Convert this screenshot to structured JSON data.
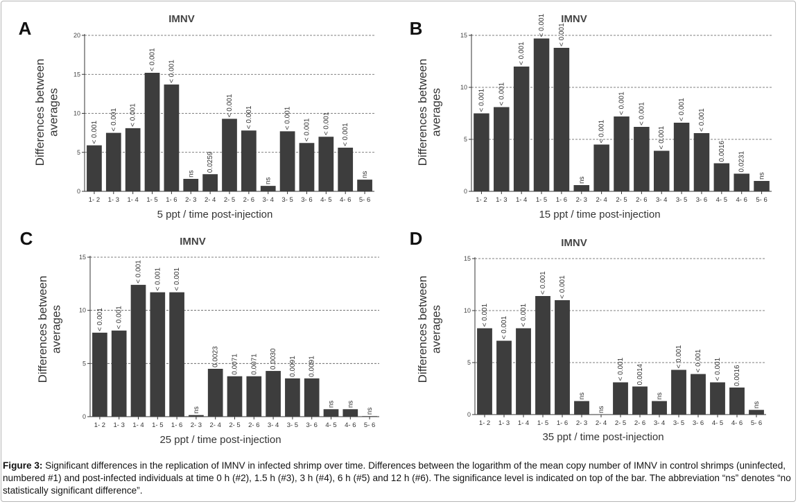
{
  "caption": {
    "label": "Figure 3:",
    "text": " Significant differences in the replication of IMNV in infected shrimp over time. Differences between the logarithm of the mean copy number of IMNV in control shrimps (uninfected, numbered #1) and post-infected individuals at time 0 h (#2), 1.5 h (#3), 3 h (#4), 6 h (#5) and 12 h (#6). The significance level is indicated on top of the bar. The abbreviation “ns” denotes “no statistically significant difference”."
  },
  "chart_data": [
    {
      "panel": "A",
      "type": "bar",
      "title": "IMNV",
      "xlabel": "5 ppt / time post-injection",
      "ylabel": "Differences between averages",
      "ylim": [
        0,
        20
      ],
      "yticks": [
        0,
        5,
        10,
        15,
        20
      ],
      "grid": true,
      "categories": [
        "1- 2",
        "1- 3",
        "1- 4",
        "1- 5",
        "1- 6",
        "2- 3",
        "2- 4",
        "2- 5",
        "2- 6",
        "3- 4",
        "3- 5",
        "3- 6",
        "4- 5",
        "4- 6",
        "5- 6"
      ],
      "values": [
        5.9,
        7.5,
        8.1,
        15.2,
        13.7,
        1.6,
        2.2,
        9.3,
        7.8,
        0.7,
        7.7,
        6.2,
        7.0,
        5.6,
        1.5
      ],
      "labels": [
        "< 0.001",
        "< 0.001",
        "< 0.001",
        "< 0.001",
        "< 0.001",
        "ns",
        "0.0259",
        "< 0.001",
        "< 0.001",
        "ns",
        "< 0.001",
        "< 0.001",
        "< 0.001",
        "< 0.001",
        "ns"
      ]
    },
    {
      "panel": "B",
      "type": "bar",
      "title": "IMNV",
      "xlabel": "15 ppt / time post-injection",
      "ylabel": "Differences between averages",
      "ylim": [
        0,
        15
      ],
      "yticks": [
        0,
        5,
        10,
        15
      ],
      "grid": true,
      "categories": [
        "1- 2",
        "1- 3",
        "1- 4",
        "1- 5",
        "1- 6",
        "2- 3",
        "2- 4",
        "2- 5",
        "2- 6",
        "3- 4",
        "3- 5",
        "3- 6",
        "4- 5",
        "4- 6",
        "5- 6"
      ],
      "values": [
        7.5,
        8.1,
        12.0,
        14.7,
        13.8,
        0.6,
        4.5,
        7.2,
        6.2,
        3.9,
        6.6,
        5.6,
        2.7,
        1.7,
        1.0
      ],
      "labels": [
        "< 0.001",
        "< 0.001",
        "< 0.001",
        "< 0.001",
        "< 0.001",
        "ns",
        "< 0.001",
        "< 0.001",
        "< 0.001",
        "< 0.001",
        "< 0.001",
        "< 0.001",
        "0.0016",
        "0.0231",
        "ns"
      ]
    },
    {
      "panel": "C",
      "type": "bar",
      "title": "IMNV",
      "xlabel": "25 ppt / time post-injection",
      "ylabel": "Differences between averages",
      "ylim": [
        0,
        15
      ],
      "yticks": [
        0,
        5,
        10,
        15
      ],
      "grid": true,
      "categories": [
        "1- 2",
        "1- 3",
        "1- 4",
        "1- 5",
        "1- 6",
        "2- 3",
        "2- 4",
        "2- 5",
        "2- 6",
        "3- 4",
        "3- 5",
        "3- 6",
        "4- 5",
        "4- 6",
        "5- 6"
      ],
      "values": [
        7.9,
        8.1,
        12.4,
        11.7,
        11.7,
        0.15,
        4.5,
        3.8,
        3.8,
        4.3,
        3.6,
        3.6,
        0.7,
        0.7,
        0.05
      ],
      "labels": [
        "< 0.001",
        "< 0.001",
        "< 0.001",
        "< 0.001",
        "< 0.001",
        "ns",
        "0.0023",
        "0.0071",
        "0.0071",
        "0.0030",
        "0.0091",
        "0.0091",
        "ns",
        "ns",
        "ns"
      ]
    },
    {
      "panel": "D",
      "type": "bar",
      "title": "IMNV",
      "xlabel": "35 ppt / time post-injection",
      "ylabel": "Differences between averages",
      "ylim": [
        0,
        15
      ],
      "yticks": [
        0,
        5,
        10,
        15
      ],
      "grid": true,
      "categories": [
        "1- 2",
        "1- 3",
        "1- 4",
        "1- 5",
        "1- 6",
        "2- 3",
        "2- 4",
        "2- 5",
        "2- 6",
        "3- 4",
        "3- 5",
        "3- 6",
        "4- 5",
        "4- 6",
        "5- 6"
      ],
      "values": [
        8.3,
        7.1,
        8.3,
        11.4,
        11.0,
        1.3,
        0.0,
        3.1,
        2.7,
        1.3,
        4.3,
        3.9,
        3.1,
        2.6,
        0.45
      ],
      "labels": [
        "< 0.001",
        "< 0.001",
        "< 0.001",
        "< 0.001",
        "< 0.001",
        "ns",
        "ns",
        "< 0.001",
        "0.0014",
        "ns",
        "< 0.001",
        "< 0.001",
        "< 0.001",
        "0.0016",
        "ns"
      ]
    }
  ]
}
